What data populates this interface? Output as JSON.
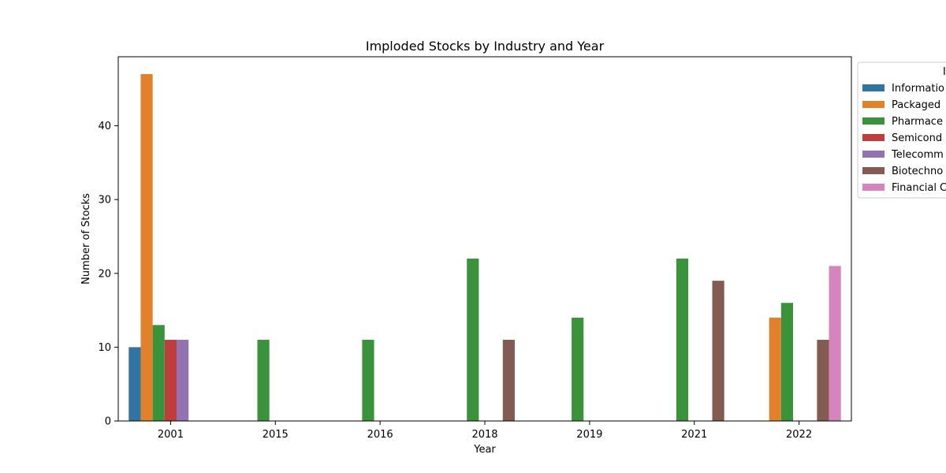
{
  "chart_data": {
    "type": "bar",
    "title": "Imploded Stocks by Industry and Year",
    "xlabel": "Year",
    "ylabel": "Number of Stocks",
    "categories": [
      "2001",
      "2015",
      "2016",
      "2018",
      "2019",
      "2021",
      "2022"
    ],
    "ylim": [
      0,
      49.35
    ],
    "yticks": [
      0,
      10,
      20,
      30,
      40
    ],
    "grid": false,
    "legend": {
      "placement": "outside-top-right",
      "title": "I",
      "entries": [
        "Informatio",
        "Packaged",
        "Pharmace",
        "Semicond",
        "Telecomm",
        "Biotechno",
        "Financial C"
      ]
    },
    "series": [
      {
        "name": "Informatio",
        "color": "#3274a1",
        "values": [
          10,
          0,
          0,
          0,
          0,
          0,
          0
        ]
      },
      {
        "name": "Packaged",
        "color": "#e1812c",
        "values": [
          47,
          0,
          0,
          0,
          0,
          0,
          14
        ]
      },
      {
        "name": "Pharmace",
        "color": "#3a923a",
        "values": [
          13,
          11,
          11,
          22,
          14,
          22,
          16
        ]
      },
      {
        "name": "Semicond",
        "color": "#c03d3e",
        "values": [
          11,
          0,
          0,
          0,
          0,
          0,
          0
        ]
      },
      {
        "name": "Telecomm",
        "color": "#9372b2",
        "values": [
          11,
          0,
          0,
          0,
          0,
          0,
          0
        ]
      },
      {
        "name": "Biotechno",
        "color": "#845b53",
        "values": [
          0,
          0,
          0,
          11,
          0,
          19,
          11
        ]
      },
      {
        "name": "Financial C",
        "color": "#d684bd",
        "values": [
          0,
          0,
          0,
          0,
          0,
          0,
          21
        ]
      }
    ]
  }
}
